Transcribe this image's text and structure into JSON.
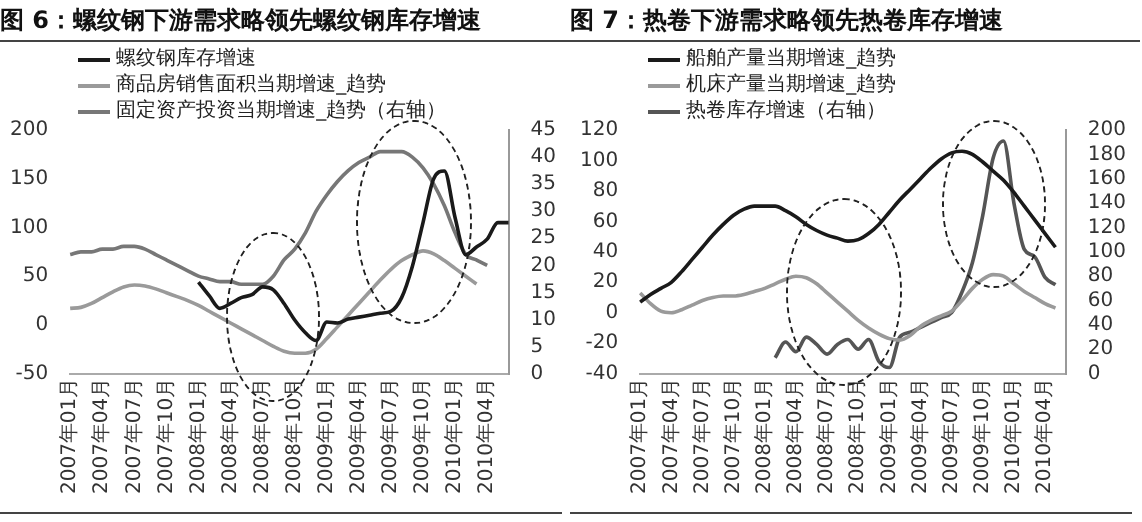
{
  "chart_data": [
    {
      "type": "line",
      "title": "图 6：螺纹钢下游需求略领先螺纹钢库存增速",
      "categories": [
        "2007年01月",
        null,
        null,
        "2007年04月",
        null,
        null,
        "2007年07月",
        null,
        null,
        "2007年10月",
        null,
        null,
        "2008年01月",
        null,
        null,
        "2008年04月",
        null,
        null,
        "2008年07月",
        null,
        null,
        "2008年10月",
        null,
        null,
        "2009年01月",
        null,
        null,
        "2009年04月",
        null,
        null,
        "2009年07月",
        null,
        null,
        "2009年10月",
        null,
        null,
        "2010年01月",
        null,
        null,
        "2010年04月",
        null,
        null
      ],
      "series": [
        {
          "name": "螺纹钢库存增速",
          "color": "#1a1a1a",
          "values": [
            null,
            null,
            null,
            null,
            null,
            null,
            null,
            null,
            null,
            null,
            null,
            null,
            44,
            30,
            17,
            22,
            28,
            31,
            39,
            36,
            22,
            5,
            -8,
            -16,
            3,
            2,
            6,
            8,
            10,
            12,
            14,
            28,
            60,
            105,
            150,
            158,
            110,
            72,
            80,
            88,
            105,
            105
          ]
        },
        {
          "name": "商品房销售面积当期增速_趋势",
          "color": "#9a9a9a",
          "values": [
            17,
            18,
            22,
            28,
            34,
            39,
            41,
            40,
            37,
            33,
            29,
            25,
            20,
            14,
            8,
            2,
            -4,
            -10,
            -16,
            -22,
            -27,
            -29,
            -29,
            -25,
            -14,
            -2,
            10,
            22,
            34,
            46,
            57,
            66,
            72,
            76,
            73,
            66,
            58,
            50,
            42,
            null,
            null,
            null
          ]
        },
        {
          "name": "固定资产投资当期增速_趋势（右轴）",
          "color": "#777777",
          "axis": "y2",
          "values": [
            22,
            22.5,
            22.5,
            23,
            23,
            23.5,
            23.5,
            23,
            22,
            21,
            20,
            19,
            18,
            17.5,
            17,
            17,
            16.5,
            16.5,
            16.5,
            18,
            21,
            23,
            26,
            30,
            33,
            35.5,
            37.5,
            39,
            40,
            41,
            41,
            41,
            40,
            38,
            35,
            31,
            26,
            22,
            21,
            20,
            null,
            null
          ]
        }
      ],
      "ylim": [
        -50,
        200
      ],
      "yticks": [
        -50,
        0,
        50,
        100,
        150,
        200
      ],
      "y2lim": [
        0,
        45
      ],
      "y2ticks": [
        0,
        5,
        10,
        15,
        20,
        25,
        30,
        35,
        40,
        45
      ],
      "legend": "top left",
      "marker": "none",
      "grid": false
    },
    {
      "type": "line",
      "title": "图 7：热卷下游需求略领先热卷库存增速",
      "categories": [
        "2007年01月",
        null,
        null,
        "2007年04月",
        null,
        null,
        "2007年07月",
        null,
        null,
        "2007年10月",
        null,
        null,
        "2008年01月",
        null,
        null,
        "2008年04月",
        null,
        null,
        "2008年07月",
        null,
        null,
        "2008年10月",
        null,
        null,
        "2009年01月",
        null,
        null,
        "2009年04月",
        null,
        null,
        "2009年07月",
        null,
        null,
        "2009年10月",
        null,
        null,
        "2010年01月",
        null,
        null,
        "2010年04月",
        null,
        null
      ],
      "series": [
        {
          "name": "船舶产量当期增速_趋势",
          "color": "#1a1a1a",
          "values": [
            7,
            12,
            16,
            20,
            27,
            35,
            43,
            51,
            58,
            64,
            68,
            70,
            70,
            70,
            67,
            63,
            58,
            54,
            51,
            49,
            47,
            48,
            52,
            58,
            66,
            74,
            81,
            88,
            95,
            101,
            105,
            106,
            104,
            99,
            93,
            87,
            79,
            70,
            61,
            52,
            43,
            null
          ]
        },
        {
          "name": "机床产量当期增速_趋势",
          "color": "#9a9a9a",
          "values": [
            13,
            6,
            1,
            0,
            2,
            5,
            8,
            10,
            11,
            11,
            12,
            14,
            16,
            19,
            22,
            24,
            23,
            19,
            13,
            7,
            1,
            -5,
            -10,
            -14,
            -17,
            -18,
            -15,
            -9,
            -5,
            -2,
            1,
            8,
            16,
            22,
            25,
            24,
            19,
            14,
            10,
            6,
            3,
            null
          ]
        },
        {
          "name": "热卷库存增速（右轴）",
          "color": "#555555",
          "axis": "y2",
          "values": [
            null,
            null,
            null,
            null,
            null,
            null,
            null,
            null,
            null,
            null,
            null,
            null,
            null,
            13,
            26,
            18,
            30,
            24,
            16,
            24,
            28,
            20,
            28,
            10,
            5,
            30,
            34,
            38,
            42,
            46,
            50,
            67,
            91,
            130,
            177,
            191,
            140,
            102,
            96,
            79,
            73,
            null
          ]
        }
      ],
      "ylim": [
        -40,
        120
      ],
      "yticks": [
        -40,
        -20,
        0,
        20,
        40,
        60,
        80,
        100,
        120
      ],
      "y2lim": [
        0,
        200
      ],
      "y2ticks": [
        0,
        20,
        40,
        60,
        80,
        100,
        120,
        140,
        160,
        180,
        200
      ],
      "legend": "top left",
      "marker": "none",
      "grid": false
    }
  ]
}
